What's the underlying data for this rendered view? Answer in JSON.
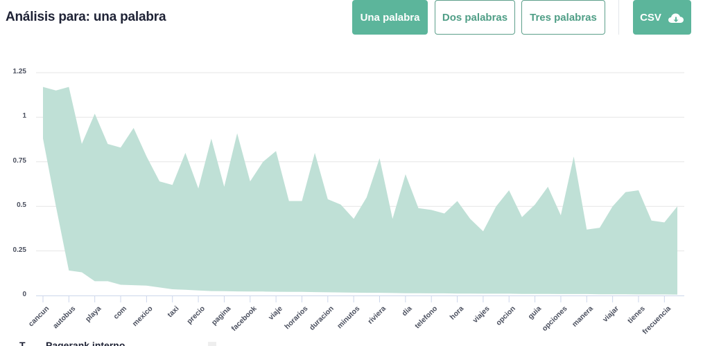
{
  "header": {
    "title": "Análisis para: una palabra",
    "buttons": [
      {
        "label": "Una palabra",
        "active": true
      },
      {
        "label": "Dos palabras",
        "active": false
      },
      {
        "label": "Tres palabras",
        "active": false
      }
    ],
    "csv_label": "CSV",
    "csv_icon": "cloud-download-icon"
  },
  "colors": {
    "accent": "#5cb59b",
    "area_fill": "#bfe0d6",
    "grid": "#e6e6e6",
    "axis": "#ccd6eb"
  },
  "chart_data": {
    "type": "area",
    "subtype": "arearange",
    "title": "",
    "xlabel": "",
    "ylabel": "",
    "ylim": [
      0,
      1.25
    ],
    "yticks": [
      0,
      0.25,
      0.5,
      0.75,
      1,
      1.25
    ],
    "ytick_labels": [
      "0",
      "0.25",
      "0.5",
      "0.75",
      "1",
      "1.25"
    ],
    "grid": true,
    "legend": false,
    "visible_tick_labels": [
      "cancun",
      "autobus",
      "playa",
      "com",
      "mexico",
      "taxi",
      "precio",
      "pagina",
      "facebook",
      "viaje",
      "horarios",
      "duracion",
      "minutos",
      "riviera",
      "dia",
      "telefono",
      "hora",
      "viajes",
      "opcion",
      "guia",
      "opciones",
      "manera",
      "viajar",
      "tienes",
      "frecuencia"
    ],
    "label_every": 2,
    "n_points": 50,
    "series": [
      {
        "name": "high",
        "values": [
          1.17,
          1.15,
          1.17,
          0.85,
          1.02,
          0.85,
          0.83,
          0.94,
          0.78,
          0.64,
          0.62,
          0.8,
          0.6,
          0.88,
          0.61,
          0.91,
          0.64,
          0.75,
          0.81,
          0.53,
          0.53,
          0.8,
          0.54,
          0.51,
          0.43,
          0.55,
          0.77,
          0.43,
          0.68,
          0.49,
          0.48,
          0.46,
          0.53,
          0.43,
          0.36,
          0.5,
          0.59,
          0.44,
          0.51,
          0.61,
          0.45,
          0.78,
          0.37,
          0.38,
          0.5,
          0.58,
          0.59,
          0.42,
          0.41,
          0.5
        ]
      },
      {
        "name": "low",
        "values": [
          0.88,
          0.5,
          0.14,
          0.13,
          0.08,
          0.08,
          0.06,
          0.058,
          0.055,
          0.045,
          0.035,
          0.032,
          0.028,
          0.025,
          0.024,
          0.023,
          0.022,
          0.022,
          0.021,
          0.02,
          0.02,
          0.019,
          0.018,
          0.017,
          0.016,
          0.015,
          0.015,
          0.014,
          0.013,
          0.013,
          0.012,
          0.012,
          0.011,
          0.011,
          0.01,
          0.01,
          0.01,
          0.009,
          0.009,
          0.009,
          0.008,
          0.008,
          0.008,
          0.007,
          0.007,
          0.007,
          0.006,
          0.006,
          0.006,
          0.005
        ]
      }
    ]
  },
  "footer": {
    "col1_label": "T",
    "col2_label": "Pagerank interno"
  }
}
